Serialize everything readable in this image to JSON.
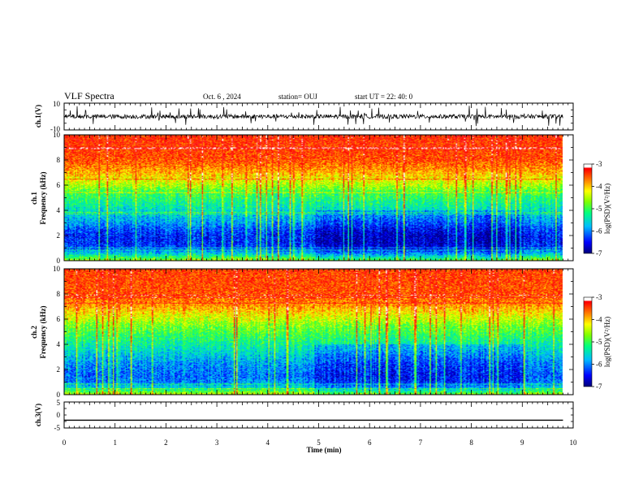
{
  "header": {
    "title": "VLF Spectra",
    "date": "Oct. 6 , 2024",
    "station": "station= OUJ",
    "start": "start UT =  22: 40: 0"
  },
  "chart_data": [
    {
      "type": "line",
      "id": "ch1-waveform",
      "ylabel": "ch.1(V)",
      "ylim": [
        -10,
        10
      ],
      "yticks": [
        "10",
        "-10"
      ],
      "xlim": [
        0,
        10
      ],
      "note": "noisy waveform around zero with excursions up to about ±5 V",
      "color": "#000000"
    },
    {
      "type": "heatmap",
      "id": "ch1-spectrogram",
      "ylabel": "ch.1\nFrequency (kHz)",
      "ylabel_lines": [
        "ch.1",
        "Frequency (kHz)"
      ],
      "ylim": [
        0,
        10
      ],
      "yticks": [
        "0",
        "2",
        "4",
        "6",
        "8",
        "10"
      ],
      "xlim": [
        0,
        9.8
      ],
      "colorbar": {
        "label": "log(PSD)(V²/Hz)",
        "range": [
          -7,
          -3
        ],
        "ticks": [
          "-3",
          "-4",
          "-5",
          "-6",
          "-7"
        ]
      },
      "profile_log_psd_by_freq_khz": [
        {
          "f": 0.0,
          "v": -4.6
        },
        {
          "f": 0.5,
          "v": -5.6
        },
        {
          "f": 1.0,
          "v": -6.3
        },
        {
          "f": 1.5,
          "v": -6.4
        },
        {
          "f": 2.0,
          "v": -6.4
        },
        {
          "f": 2.5,
          "v": -6.2
        },
        {
          "f": 3.0,
          "v": -5.9
        },
        {
          "f": 3.5,
          "v": -5.7
        },
        {
          "f": 4.0,
          "v": -5.5
        },
        {
          "f": 4.5,
          "v": -5.3
        },
        {
          "f": 5.0,
          "v": -5.1
        },
        {
          "f": 5.5,
          "v": -4.9
        },
        {
          "f": 6.0,
          "v": -4.5
        },
        {
          "f": 7.0,
          "v": -3.9
        },
        {
          "f": 8.0,
          "v": -3.5
        },
        {
          "f": 10.0,
          "v": -3.3
        }
      ]
    },
    {
      "type": "heatmap",
      "id": "ch2-spectrogram",
      "ylabel": "ch.2\nFrequency (kHz)",
      "ylabel_lines": [
        "ch.2",
        "Frequency (kHz)"
      ],
      "ylim": [
        0,
        10
      ],
      "yticks": [
        "0",
        "2",
        "4",
        "6",
        "8",
        "10"
      ],
      "xlim": [
        0,
        9.8
      ],
      "colorbar": {
        "label": "log(PSD)(V²/Hz)",
        "range": [
          -7,
          -3
        ],
        "ticks": [
          "-3",
          "-4",
          "-5",
          "-6",
          "-7"
        ]
      },
      "profile_log_psd_by_freq_khz": [
        {
          "f": 0.0,
          "v": -4.4
        },
        {
          "f": 0.5,
          "v": -5.5
        },
        {
          "f": 1.0,
          "v": -6.0
        },
        {
          "f": 1.5,
          "v": -6.1
        },
        {
          "f": 2.0,
          "v": -6.0
        },
        {
          "f": 2.5,
          "v": -5.9
        },
        {
          "f": 3.0,
          "v": -5.7
        },
        {
          "f": 3.5,
          "v": -5.5
        },
        {
          "f": 4.0,
          "v": -5.3
        },
        {
          "f": 4.5,
          "v": -5.1
        },
        {
          "f": 5.0,
          "v": -4.9
        },
        {
          "f": 5.5,
          "v": -4.7
        },
        {
          "f": 6.0,
          "v": -4.4
        },
        {
          "f": 7.0,
          "v": -3.8
        },
        {
          "f": 8.0,
          "v": -3.5
        },
        {
          "f": 10.0,
          "v": -3.4
        }
      ]
    },
    {
      "type": "line",
      "id": "ch3-waveform",
      "ylabel": "ch.3(V)",
      "ylim": [
        -5,
        5
      ],
      "yticks": [
        "5",
        "0",
        "-5"
      ],
      "xlim": [
        0,
        10
      ],
      "x": [
        0,
        9.8
      ],
      "y": [
        -2,
        -2
      ],
      "color": "#000000"
    }
  ],
  "xaxis": {
    "label": "Time (min)",
    "ticks": [
      "0",
      "1",
      "2",
      "3",
      "4",
      "5",
      "6",
      "7",
      "8",
      "9",
      "10"
    ],
    "range": [
      0,
      10
    ]
  },
  "colors": {
    "colormap": [
      "#00007f",
      "#0000ff",
      "#00bfff",
      "#00ff7f",
      "#7fff00",
      "#ffff00",
      "#ff7f00",
      "#ff0000",
      "#ffffff"
    ]
  }
}
